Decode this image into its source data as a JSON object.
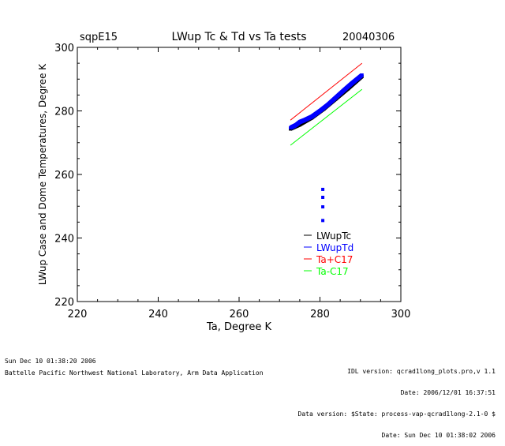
{
  "chart_data": {
    "type": "scatter",
    "title": "LWup Tc & Td vs Ta tests",
    "site": "sqpE15",
    "date": "20040306",
    "xlabel": "Ta, Degree K",
    "ylabel": "LWup Case and Dome Temperatures, Degree K",
    "xlim": [
      220,
      300
    ],
    "ylim": [
      220,
      300
    ],
    "xticks": [
      "220",
      "240",
      "260",
      "280",
      "300"
    ],
    "yticks": [
      "220",
      "240",
      "260",
      "280",
      "300"
    ],
    "legend_position": "lower-right",
    "series": [
      {
        "name": "LWupTc",
        "color": "#000000",
        "kind": "points",
        "x": [
          272.7,
          275,
          278,
          281,
          284,
          287,
          290.4
        ],
        "y": [
          274.3,
          275.6,
          277.8,
          280.6,
          283.8,
          287.0,
          290.8
        ]
      },
      {
        "name": "LWupTd",
        "color": "#0000ff",
        "kind": "points",
        "x": [
          272.7,
          274,
          275,
          276,
          278,
          280,
          282,
          284,
          286,
          288,
          290.4,
          280.7,
          280.7,
          280.7,
          280.7
        ],
        "y": [
          274.7,
          275.5,
          276.5,
          277.0,
          278.2,
          280.0,
          282.0,
          284.3,
          286.6,
          288.8,
          291.3,
          255.3,
          252.8,
          249.8,
          245.5
        ]
      },
      {
        "name": "Ta+C17",
        "color": "#ff0000",
        "kind": "line",
        "x": [
          272.7,
          290.4
        ],
        "y": [
          277.1,
          295.0
        ]
      },
      {
        "name": "Ta-C17",
        "color": "#00ff00",
        "kind": "line",
        "x": [
          272.7,
          290.4
        ],
        "y": [
          269.2,
          286.8
        ]
      }
    ]
  },
  "footer": {
    "left_date": "Sun Dec 10 01:38:20 2006",
    "left_org": "Battelle Pacific Northwest National Laboratory, Arm Data Application",
    "right_lines": [
      "IDL version: qcrad1long_plots.pro,v 1.1",
      "Date: 2006/12/01 16:37:51",
      "Data version: $State: process-vap-qcrad1long-2.1-0 $",
      "Date: Sun Dec 10 01:38:02 2006"
    ]
  }
}
